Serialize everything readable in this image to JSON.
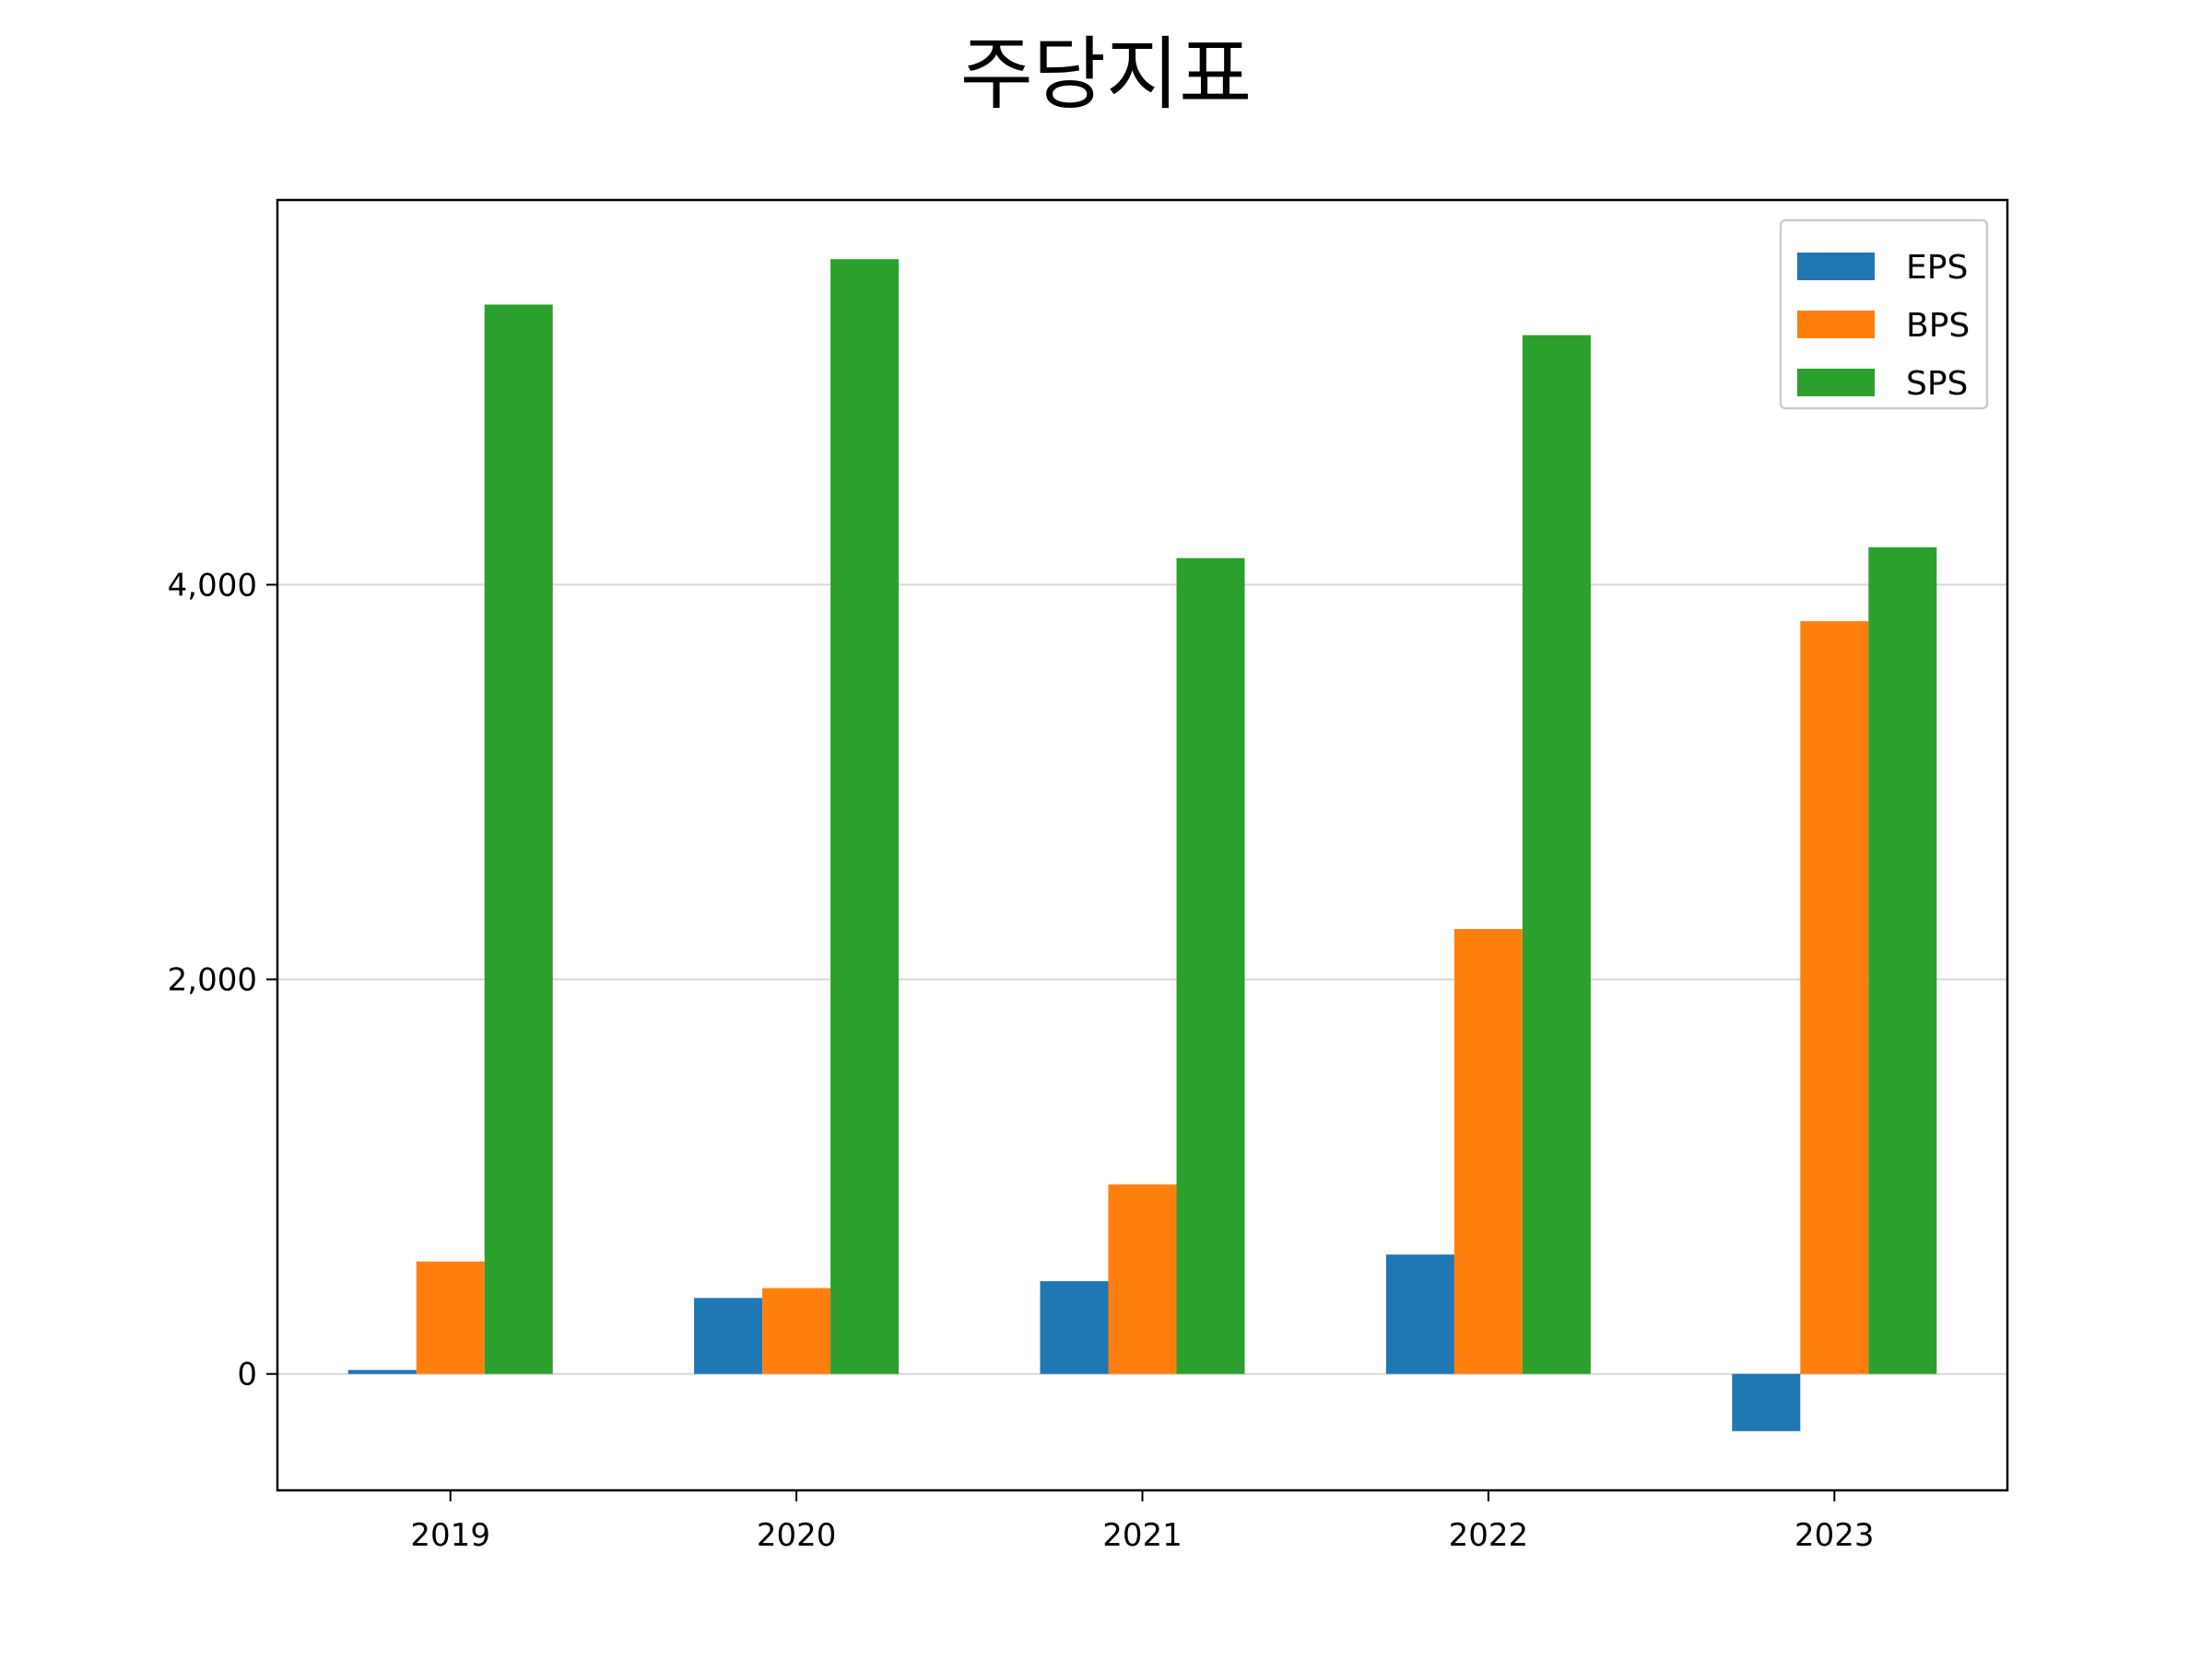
{
  "chart_data": {
    "type": "bar",
    "title": "주당지표",
    "xlabel": "",
    "ylabel": "",
    "categories": [
      "2019",
      "2020",
      "2021",
      "2022",
      "2023"
    ],
    "series": [
      {
        "name": "EPS",
        "color": "#1f77b4",
        "values": [
          20,
          385,
          470,
          605,
          -290
        ]
      },
      {
        "name": "BPS",
        "color": "#ff7f0e",
        "values": [
          570,
          435,
          960,
          2255,
          3815
        ]
      },
      {
        "name": "SPS",
        "color": "#2ca02c",
        "values": [
          5420,
          5650,
          4135,
          5265,
          4190
        ]
      }
    ],
    "ylim": [
      -590,
      5950
    ],
    "yticks": [
      0,
      2000,
      4000
    ],
    "ytick_labels": [
      "0",
      "2,000",
      "4,000"
    ],
    "grid": "y",
    "legend_position": "top-right"
  }
}
